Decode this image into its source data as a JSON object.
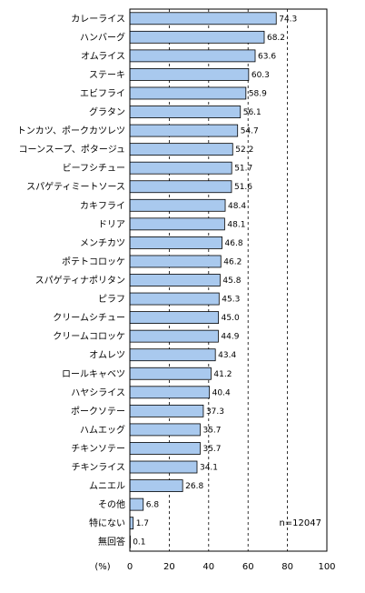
{
  "chart_data": {
    "type": "bar",
    "orientation": "horizontal",
    "categories": [
      "カレーライス",
      "ハンバーグ",
      "オムライス",
      "ステーキ",
      "エビフライ",
      "グラタン",
      "トンカツ、ポークカツレツ",
      "コーンスープ、ポタージュ",
      "ビーフシチュー",
      "スパゲティミートソース",
      "カキフライ",
      "ドリア",
      "メンチカツ",
      "ポテトコロッケ",
      "スパゲティナポリタン",
      "ピラフ",
      "クリームシチュー",
      "クリームコロッケ",
      "オムレツ",
      "ロールキャベツ",
      "ハヤシライス",
      "ポークソテー",
      "ハムエッグ",
      "チキンソテー",
      "チキンライス",
      "ムニエル",
      "その他",
      "特にない",
      "無回答"
    ],
    "values": [
      74.3,
      68.2,
      63.6,
      60.3,
      58.9,
      56.1,
      54.7,
      52.2,
      51.7,
      51.6,
      48.4,
      48.1,
      46.8,
      46.2,
      45.8,
      45.3,
      45.0,
      44.9,
      43.4,
      41.2,
      40.4,
      37.3,
      35.7,
      35.7,
      34.1,
      26.8,
      6.8,
      1.7,
      0.1
    ],
    "value_labels": [
      "74.3",
      "68.2",
      "63.6",
      "60.3",
      "58.9",
      "56.1",
      "54.7",
      "52.2",
      "51.7",
      "51.6",
      "48.4",
      "48.1",
      "46.8",
      "46.2",
      "45.8",
      "45.3",
      "45.0",
      "44.9",
      "43.4",
      "41.2",
      "40.4",
      "37.3",
      "35.7",
      "35.7",
      "34.1",
      "26.8",
      "6.8",
      "1.7",
      "0.1"
    ],
    "xlim": [
      0,
      100
    ],
    "x_ticks": [
      "0",
      "20",
      "40",
      "60",
      "80",
      "100"
    ],
    "x_unit_label": "(%)",
    "annotation": "n=12047",
    "grid": "vertical dashed",
    "bar_color": "#a9c9ee",
    "bar_edge_color": "#000000"
  }
}
